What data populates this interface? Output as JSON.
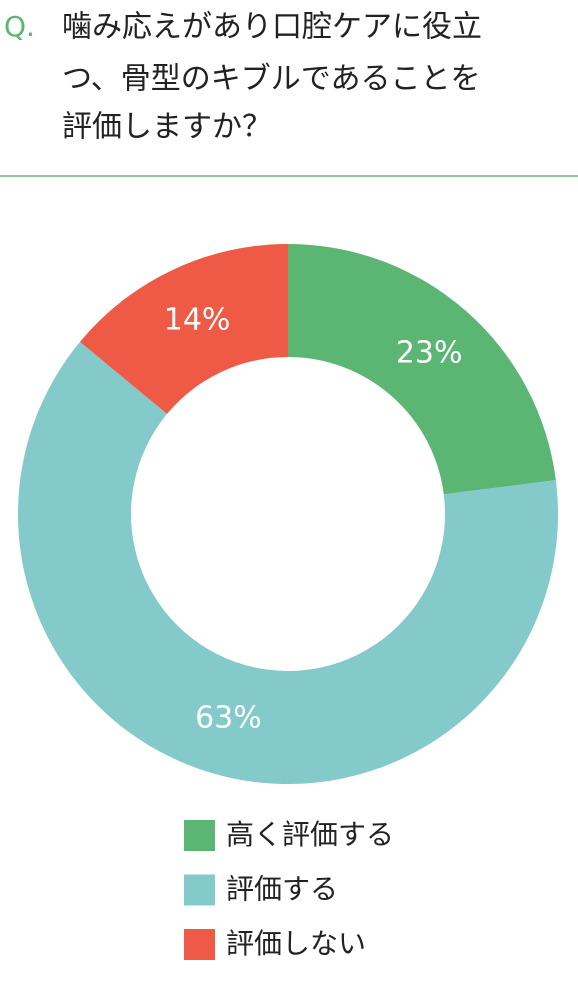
{
  "chart_data": {
    "type": "donut",
    "question_prefix": "Q.",
    "question_lines": [
      "噛み応えがあり口腔ケアに役立",
      "つ、骨型のキブルであることを",
      "評価しますか？"
    ],
    "categories": [
      "高く評価する",
      "評価する",
      "評価しない"
    ],
    "values": [
      23,
      63,
      14
    ],
    "value_labels": [
      "23%",
      "63%",
      "14%"
    ],
    "colors": [
      "#5bb573",
      "#84cacb",
      "#ee5a45"
    ]
  }
}
